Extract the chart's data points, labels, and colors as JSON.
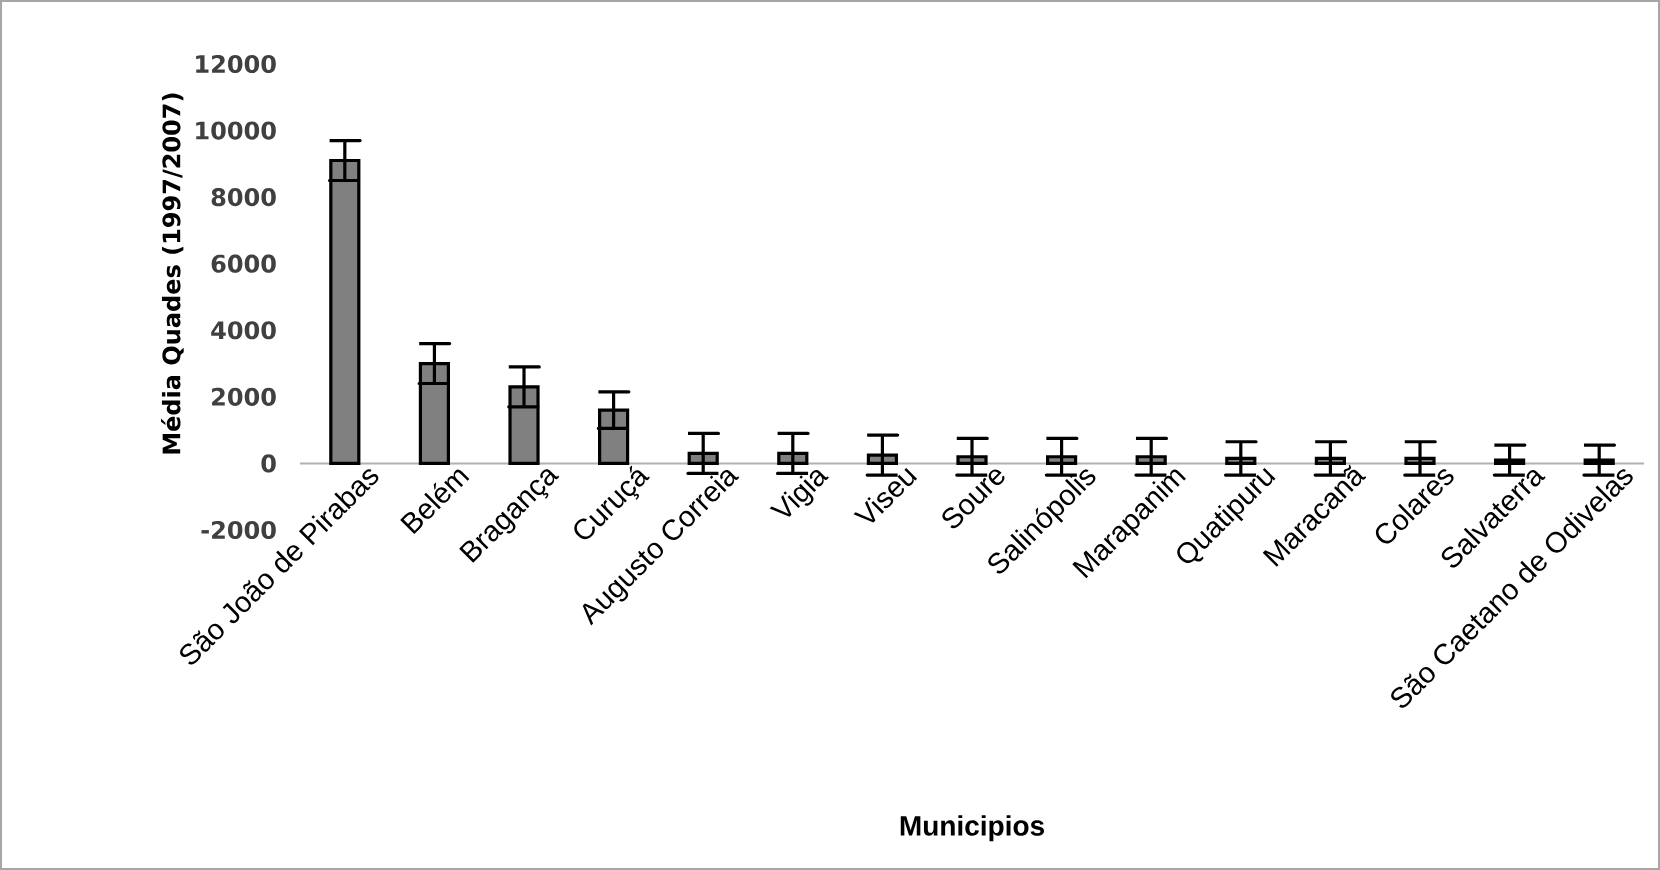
{
  "chart_data": {
    "type": "bar",
    "xlabel": "Municipios",
    "ylabel": "Média Quades (1997/2007)",
    "categories": [
      "São João de Pirabas",
      "Belém",
      "Bragança",
      "Curuçá",
      "Augusto Correia",
      "Vigia",
      "Viseu",
      "Soure",
      "Salinópolis",
      "Marapanim",
      "Quatipuru",
      "Maracanã",
      "Colares",
      "Salvaterra",
      "São Caetano de Odivelas"
    ],
    "values": [
      9100,
      3000,
      2300,
      1600,
      300,
      300,
      250,
      200,
      200,
      200,
      150,
      150,
      150,
      100,
      100
    ],
    "errors": [
      600,
      600,
      600,
      550,
      600,
      600,
      600,
      550,
      550,
      550,
      500,
      500,
      500,
      450,
      450
    ],
    "color": "#808080",
    "ylim": [
      -2000,
      12000
    ],
    "yticks": [
      -2000,
      0,
      2000,
      4000,
      6000,
      8000,
      10000,
      12000
    ]
  }
}
